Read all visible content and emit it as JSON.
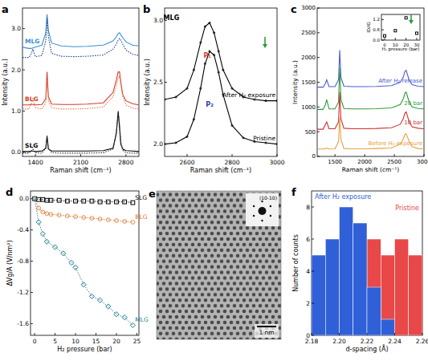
{
  "chart_data": [
    {
      "type": "line",
      "title": "a",
      "x_label": "Raman shift (cm⁻¹)",
      "y_label": "Intensity (a.u.)",
      "x": [
        1200,
        1300,
        1340,
        1360,
        1400,
        1500,
        1560,
        1580,
        1600,
        1650,
        1800,
        2000,
        2200,
        2450,
        2600,
        2650,
        2680,
        2700,
        2720,
        2750,
        2800,
        2900,
        3000
      ],
      "xlim": [
        1200,
        3000
      ],
      "xticks": [
        1400,
        2100,
        2800
      ],
      "ylim": [
        -0.1,
        3.5
      ],
      "yticks": [
        {
          "value": 0,
          "label": "0.0"
        },
        {
          "value": 1,
          "label": "1.0"
        },
        {
          "value": 2,
          "label": "2.0"
        },
        {
          "value": 3,
          "label": "3.0"
        }
      ],
      "series": [
        {
          "name": "MLG",
          "color": "#3b8fd4",
          "line_style": "solid",
          "values": [
            2.55,
            2.52,
            2.52,
            2.53,
            2.55,
            2.6,
            2.9,
            3.35,
            2.95,
            2.65,
            2.58,
            2.56,
            2.57,
            2.6,
            2.7,
            2.8,
            2.88,
            2.9,
            2.85,
            2.78,
            2.68,
            2.6,
            2.58
          ]
        },
        {
          "color": "#1a3f8a",
          "line_style": "dotted",
          "values": [
            2.3,
            2.3,
            2.4,
            2.5,
            2.32,
            2.35,
            2.7,
            3.25,
            2.8,
            2.4,
            2.33,
            2.32,
            2.33,
            2.36,
            2.5,
            2.62,
            2.72,
            2.76,
            2.72,
            2.62,
            2.48,
            2.38,
            2.35
          ]
        },
        {
          "name": "BLG",
          "color": "#d93a2a",
          "line_style": "solid",
          "values": [
            1.15,
            1.15,
            1.16,
            1.16,
            1.15,
            1.16,
            1.3,
            1.95,
            1.35,
            1.17,
            1.16,
            1.16,
            1.17,
            1.2,
            1.45,
            1.75,
            1.95,
            1.95,
            1.7,
            1.4,
            1.25,
            1.18,
            1.15
          ]
        },
        {
          "color": "#e07a50",
          "line_style": "dotted",
          "values": [
            1.05,
            1.05,
            1.2,
            1.3,
            1.08,
            1.05,
            1.2,
            1.75,
            1.25,
            1.08,
            1.05,
            1.05,
            1.06,
            1.1,
            1.35,
            1.6,
            1.8,
            1.85,
            1.65,
            1.35,
            1.15,
            1.07,
            1.05
          ]
        },
        {
          "name": "SLG",
          "color": "#000000",
          "line_style": "solid",
          "values": [
            0.02,
            0.02,
            0.03,
            0.03,
            0.02,
            0.03,
            0.1,
            0.38,
            0.08,
            0.03,
            0.03,
            0.03,
            0.03,
            0.04,
            0.1,
            0.45,
            1.0,
            0.6,
            0.2,
            0.08,
            0.04,
            0.03,
            0.02
          ]
        },
        {
          "color": "#333333",
          "line_style": "dotted",
          "values": [
            -0.02,
            -0.02,
            0.04,
            0.08,
            -0.01,
            -0.02,
            0.1,
            0.42,
            0.1,
            -0.01,
            -0.02,
            -0.02,
            -0.02,
            -0.01,
            0.08,
            0.48,
            0.95,
            0.7,
            0.25,
            0.05,
            -0.01,
            -0.02,
            -0.02
          ]
        }
      ]
    },
    {
      "type": "line",
      "title": "b",
      "x_label": "Raman shift (cm⁻¹)",
      "y_label": "Intensity (a.u.)",
      "x": [
        2500,
        2550,
        2600,
        2630,
        2660,
        2680,
        2700,
        2720,
        2740,
        2760,
        2800,
        2850,
        2900,
        2950,
        3000
      ],
      "xlim": [
        2500,
        3000
      ],
      "xticks": [
        2600,
        2800,
        3000
      ],
      "ylim": [
        1.9,
        3.1
      ],
      "yticks": [
        {
          "value": 2,
          "label": "2.0"
        },
        {
          "value": 2.5,
          "label": "2.5"
        },
        {
          "value": 3,
          "label": "3.0"
        }
      ],
      "series": [
        {
          "name": "After H₂ exposure",
          "color": "#000000",
          "line_style": "solid",
          "marker": "circle",
          "values": [
            2.36,
            2.38,
            2.45,
            2.6,
            2.82,
            2.95,
            2.98,
            2.9,
            2.75,
            2.6,
            2.45,
            2.38,
            2.36,
            2.35,
            2.35
          ]
        },
        {
          "name": "Pristine",
          "color": "#000000",
          "line_style": "solid",
          "marker": "circle",
          "values": [
            2.0,
            2.01,
            2.06,
            2.2,
            2.45,
            2.65,
            2.75,
            2.72,
            2.58,
            2.4,
            2.15,
            2.05,
            2.02,
            2.01,
            2.0
          ]
        }
      ],
      "annotations": [
        {
          "text": "MLG",
          "x": 2530,
          "y": 3.0,
          "color": "#000000"
        },
        {
          "text": "P₁",
          "x": 2690,
          "y": 2.7,
          "color": "#d93a2a"
        },
        {
          "text": "P₂",
          "x": 2700,
          "y": 2.3,
          "color": "#2a3fa0"
        }
      ]
    },
    {
      "type": "line",
      "title": "c",
      "x_label": "Raman shift (cm⁻¹)",
      "y_label": "Intensity (a.u.)",
      "x": [
        1200,
        1300,
        1340,
        1360,
        1400,
        1500,
        1560,
        1580,
        1600,
        1650,
        1800,
        2000,
        2200,
        2450,
        2600,
        2650,
        2680,
        2700,
        2720,
        2750,
        2800,
        2900,
        3000
      ],
      "xlim": [
        1200,
        3000
      ],
      "xticks": [
        1500,
        2000,
        2500,
        3000
      ],
      "ylim": [
        0,
        3000
      ],
      "yticks": [
        0,
        500,
        1000,
        1500,
        2000,
        2500,
        3000
      ],
      "series": [
        {
          "name": "After H₂ release",
          "color": "#4a5bd0",
          "line_style": "solid",
          "values": [
            1400,
            1400,
            1480,
            1550,
            1410,
            1410,
            1550,
            2150,
            1600,
            1420,
            1410,
            1410,
            1415,
            1430,
            1500,
            1600,
            1720,
            1740,
            1660,
            1540,
            1450,
            1420,
            1410
          ]
        },
        {
          "name": "20 bar",
          "color": "#2e9b3a",
          "line_style": "solid",
          "values": [
            950,
            950,
            1050,
            1150,
            960,
            960,
            1100,
            1800,
            1160,
            970,
            960,
            960,
            965,
            980,
            1050,
            1160,
            1280,
            1300,
            1220,
            1100,
            1000,
            970,
            960
          ]
        },
        {
          "name": "10 bar",
          "color": "#d03030",
          "line_style": "solid",
          "values": [
            550,
            550,
            650,
            700,
            560,
            560,
            700,
            1300,
            760,
            570,
            560,
            560,
            565,
            580,
            650,
            760,
            880,
            900,
            820,
            700,
            600,
            570,
            560
          ]
        },
        {
          "name": "Before H₂ exposure",
          "color": "#e8a040",
          "line_style": "solid",
          "values": [
            150,
            150,
            160,
            170,
            150,
            155,
            300,
            800,
            350,
            160,
            155,
            155,
            160,
            170,
            250,
            350,
            450,
            460,
            400,
            300,
            200,
            160,
            150
          ]
        }
      ]
    },
    {
      "type": "scatter",
      "x_label": "H₂ pressure (bar)",
      "y_label": "ID/IG",
      "xlim": [
        -3,
        33
      ],
      "xticks": [
        0,
        10,
        20,
        30
      ],
      "ylim": [
        0,
        1.5
      ],
      "yticks": [
        {
          "value": 0,
          "label": "0.0"
        },
        {
          "value": 0.6,
          "label": "0.6"
        },
        {
          "value": 1.2,
          "label": "1.2"
        }
      ],
      "series": [
        {
          "color": "#000000",
          "marker": "square",
          "x": [
            0,
            10,
            20,
            30
          ],
          "values": [
            0.25,
            0.55,
            1.3,
            0.4
          ]
        }
      ]
    },
    {
      "type": "scatter",
      "title": "d",
      "x_label": "H₂ pressure (bar)",
      "y_label": "ΔVg/A (V/nm²)",
      "xlim": [
        -1,
        25.5
      ],
      "xticks": [
        0,
        5,
        10,
        15,
        20,
        25
      ],
      "ylim": [
        -1.75,
        0.1
      ],
      "yticks": [
        {
          "value": 0,
          "label": "0.0"
        },
        -0.4,
        -0.8,
        -1.2,
        -1.6
      ],
      "series": [
        {
          "name": "SLG",
          "color": "#000000",
          "marker": "square",
          "line_style": "dotted",
          "x": [
            0,
            1,
            2,
            3,
            4,
            6,
            8,
            10,
            12,
            14,
            16,
            18,
            20,
            22,
            24
          ],
          "values": [
            0,
            -0.01,
            -0.01,
            -0.02,
            -0.02,
            -0.02,
            -0.03,
            -0.03,
            -0.03,
            -0.03,
            -0.04,
            -0.04,
            -0.04,
            -0.04,
            -0.05
          ]
        },
        {
          "name": "BLG",
          "color": "#e07020",
          "marker": "circle",
          "line_style": "dotted",
          "x": [
            0,
            1,
            2,
            3,
            4,
            6,
            8,
            10,
            12,
            14,
            16,
            18,
            20,
            22,
            24
          ],
          "values": [
            0,
            -0.12,
            -0.17,
            -0.19,
            -0.2,
            -0.21,
            -0.22,
            -0.23,
            -0.24,
            -0.25,
            -0.26,
            -0.27,
            -0.28,
            -0.29,
            -0.3
          ]
        },
        {
          "name": "MLG",
          "color": "#1e7a8c",
          "marker": "diamond",
          "line_style": "dotted",
          "x": [
            0,
            1,
            2,
            3,
            5,
            7,
            9,
            10,
            12,
            14,
            16,
            18,
            20,
            22,
            24
          ],
          "values": [
            0,
            -0.3,
            -0.45,
            -0.55,
            -0.62,
            -0.7,
            -0.82,
            -0.88,
            -1.1,
            -1.25,
            -1.3,
            -1.38,
            -1.48,
            -1.52,
            -1.62
          ]
        }
      ]
    },
    {
      "type": "image",
      "title": "e",
      "scale_bar": "1 nm",
      "inset_label": "(10-10)"
    },
    {
      "type": "histogram",
      "title": "f",
      "x_label": "d-spacing (Å)",
      "y_label": "Number of counts",
      "bins": [
        2.18,
        2.19,
        2.2,
        2.21,
        2.22,
        2.23,
        2.24,
        2.25,
        2.26
      ],
      "xlim": [
        2.18,
        2.26
      ],
      "xticks": [
        2.18,
        {
          "value": 2.2,
          "label": "2.20"
        },
        2.22,
        2.24,
        2.26
      ],
      "ylim": [
        0,
        9
      ],
      "yticks": [
        0,
        2,
        4,
        6,
        8
      ],
      "series": [
        {
          "name": "After H₂ exposure",
          "color": "#3060d8",
          "values": [
            5,
            6,
            8,
            7,
            3,
            1,
            0,
            0
          ]
        },
        {
          "name": "Pristine",
          "color": "#e84848",
          "values": [
            0,
            0,
            0,
            0,
            6,
            5,
            6,
            5
          ]
        }
      ]
    }
  ]
}
